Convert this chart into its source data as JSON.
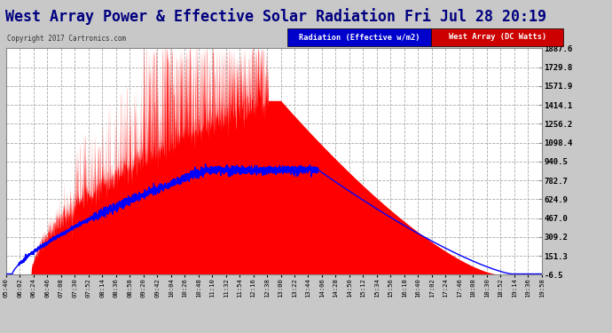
{
  "title": "West Array Power & Effective Solar Radiation Fri Jul 28 20:19",
  "copyright": "Copyright 2017 Cartronics.com",
  "legend_labels": [
    "Radiation (Effective w/m2)",
    "West Array (DC Watts)"
  ],
  "ymin": -6.5,
  "ymax": 1887.6,
  "yticks": [
    1887.6,
    1729.8,
    1571.9,
    1414.1,
    1256.2,
    1098.4,
    940.5,
    782.7,
    624.9,
    467.0,
    309.2,
    151.3,
    -6.5
  ],
  "background_color": "#c8c8c8",
  "plot_bg_color": "#ffffff",
  "title_color": "#000080",
  "title_fontsize": 12,
  "xtick_labels": [
    "05:40",
    "06:02",
    "06:24",
    "06:46",
    "07:08",
    "07:30",
    "07:52",
    "08:14",
    "08:36",
    "08:58",
    "09:20",
    "09:42",
    "10:04",
    "10:26",
    "10:48",
    "11:10",
    "11:32",
    "11:54",
    "12:16",
    "12:38",
    "13:00",
    "13:22",
    "13:44",
    "14:06",
    "14:28",
    "14:50",
    "15:12",
    "15:34",
    "15:56",
    "16:18",
    "16:40",
    "17:02",
    "17:24",
    "17:46",
    "18:08",
    "18:30",
    "18:52",
    "19:14",
    "19:36",
    "19:58"
  ],
  "grid_color": "#aaaaaa",
  "grid_style": "--",
  "line_color_radiation": "#0000ff",
  "fill_color_west": "#ff0000",
  "legend_rad_bg": "#0000cc",
  "legend_west_bg": "#cc0000"
}
